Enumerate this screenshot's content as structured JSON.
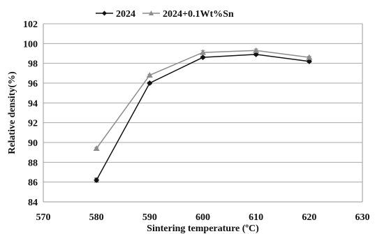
{
  "chart_data": {
    "type": "line",
    "xlabel": "Sintering temperature (ºC)",
    "ylabel": "Relative density(%)",
    "xlim": [
      570,
      630
    ],
    "ylim": [
      84,
      102
    ],
    "xticks": [
      570,
      580,
      590,
      600,
      610,
      620,
      630
    ],
    "yticks": [
      84,
      86,
      88,
      90,
      92,
      94,
      96,
      98,
      100,
      102
    ],
    "grid": "horizontal",
    "legend_position": "top",
    "series": [
      {
        "name": "2024",
        "marker": "diamond",
        "color": "#111111",
        "x": [
          580,
          590,
          600,
          610,
          620
        ],
        "y": [
          86.2,
          96.0,
          98.6,
          98.9,
          98.2
        ],
        "error": [
          0.2,
          0.1,
          0.1,
          0.1,
          0.1
        ]
      },
      {
        "name": "2024+0.1Wt%Sn",
        "marker": "triangle",
        "color": "#8c8c8c",
        "x": [
          580,
          590,
          600,
          610,
          620
        ],
        "y": [
          89.4,
          96.8,
          99.1,
          99.3,
          98.6
        ],
        "error": [
          0.1,
          0.1,
          0.2,
          0.15,
          0.1
        ]
      }
    ]
  }
}
